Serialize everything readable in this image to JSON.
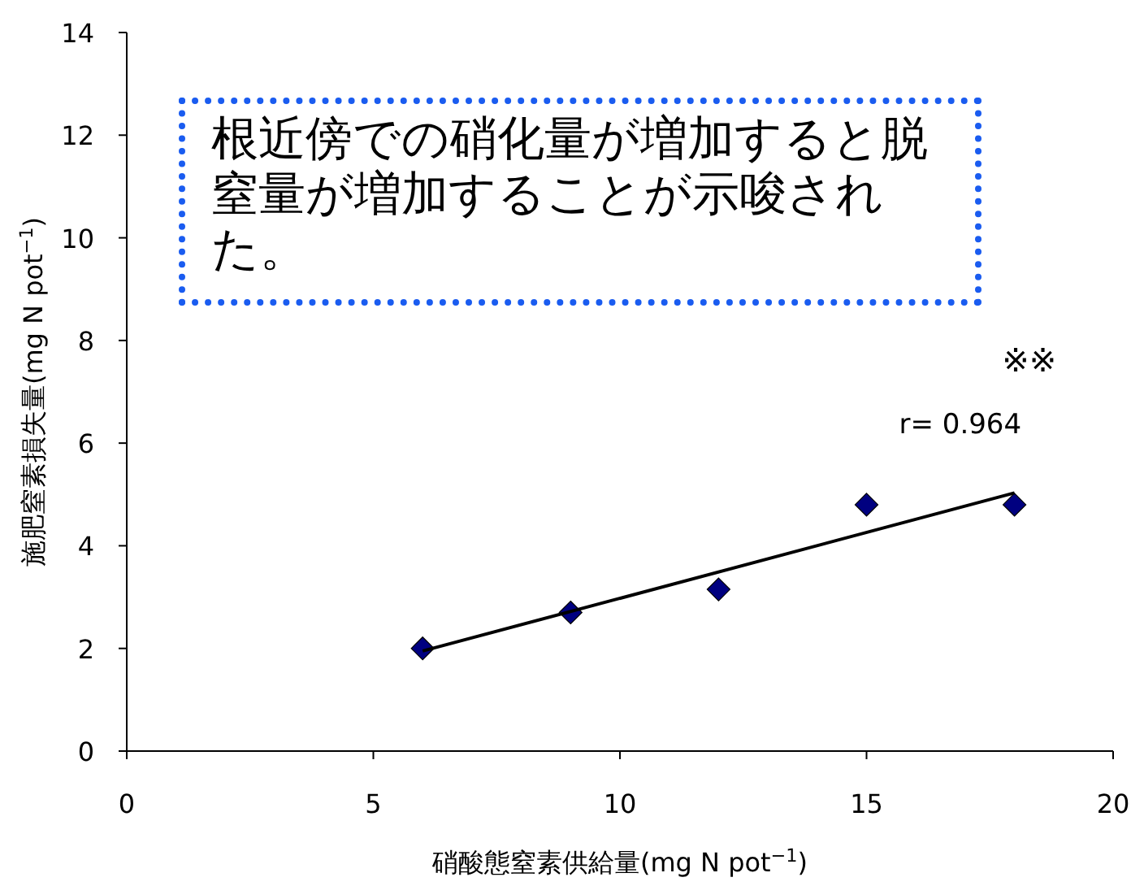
{
  "chart_data": {
    "type": "scatter",
    "xlabel": "硝酸態窒素供給量(mg N pot$^{−1}$)",
    "ylabel": "施肥窒素損失量(mg N pot$^{−1}$)",
    "xlim": [
      0,
      20
    ],
    "xticks": [
      0,
      5,
      10,
      15,
      20
    ],
    "ylim": [
      0,
      14
    ],
    "yticks": [
      0,
      2,
      4,
      6,
      8,
      10,
      12,
      14
    ],
    "grid": false,
    "marker": "diamond",
    "series": [
      {
        "color": "#000080",
        "x": [
          6,
          9,
          12,
          15,
          18
        ],
        "values": [
          2.0,
          2.7,
          3.15,
          4.8,
          4.8
        ]
      },
      {
        "type": "line",
        "color": "#000000",
        "x": [
          6,
          18
        ],
        "values": [
          1.95,
          5.03
        ],
        "marker": "none",
        "line_style": "solid"
      }
    ],
    "annotations": [
      "根近傍での硝化量が増加すると脱窒量が増加することが示唆された。",
      "r= 0.964",
      "※※"
    ]
  }
}
